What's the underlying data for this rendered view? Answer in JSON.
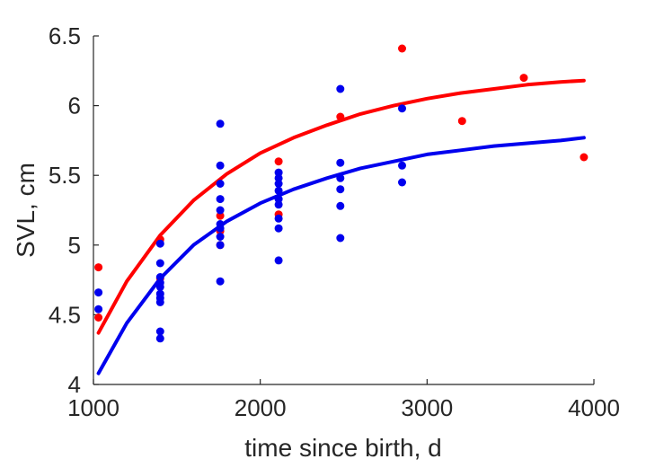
{
  "chart_data": {
    "type": "scatter",
    "title": "",
    "xlabel": "time since birth, d",
    "ylabel": "SVL, cm",
    "xlim": [
      1000,
      4000
    ],
    "ylim": [
      4,
      6.5
    ],
    "xticks": [
      {
        "value": 1000,
        "label": "1000"
      },
      {
        "value": 2000,
        "label": "2000"
      },
      {
        "value": 3000,
        "label": "3000"
      },
      {
        "value": 4000,
        "label": "4000"
      }
    ],
    "yticks": [
      {
        "value": 4,
        "label": "4"
      },
      {
        "value": 4.5,
        "label": "4.5"
      },
      {
        "value": 5,
        "label": "5"
      },
      {
        "value": 5.5,
        "label": "5.5"
      },
      {
        "value": 6,
        "label": "6"
      },
      {
        "value": 6.5,
        "label": "6.5"
      }
    ],
    "grid": false,
    "legend": "none",
    "series": [
      {
        "color": "#ff0000",
        "points": [
          [
            1030,
            4.84
          ],
          [
            1030,
            4.48
          ],
          [
            1400,
            5.04
          ],
          [
            1400,
            4.76
          ],
          [
            1760,
            5.21
          ],
          [
            1760,
            5.0
          ],
          [
            1760,
            5.1
          ],
          [
            2110,
            5.6
          ],
          [
            2110,
            5.22
          ],
          [
            2480,
            5.92
          ],
          [
            2850,
            6.41
          ],
          [
            3210,
            5.89
          ],
          [
            3580,
            6.2
          ],
          [
            3940,
            5.63
          ]
        ],
        "fit": [
          [
            1030,
            4.37
          ],
          [
            1200,
            4.74
          ],
          [
            1400,
            5.07
          ],
          [
            1600,
            5.32
          ],
          [
            1800,
            5.51
          ],
          [
            2000,
            5.66
          ],
          [
            2200,
            5.77
          ],
          [
            2400,
            5.86
          ],
          [
            2600,
            5.94
          ],
          [
            2800,
            6.0
          ],
          [
            3000,
            6.05
          ],
          [
            3200,
            6.09
          ],
          [
            3400,
            6.12
          ],
          [
            3600,
            6.15
          ],
          [
            3800,
            6.17
          ],
          [
            3940,
            6.18
          ]
        ]
      },
      {
        "color": "#0000ee",
        "points": [
          [
            1030,
            4.66
          ],
          [
            1030,
            4.54
          ],
          [
            1400,
            5.01
          ],
          [
            1400,
            4.87
          ],
          [
            1400,
            4.77
          ],
          [
            1400,
            4.73
          ],
          [
            1400,
            4.7
          ],
          [
            1400,
            4.65
          ],
          [
            1400,
            4.62
          ],
          [
            1400,
            4.59
          ],
          [
            1400,
            4.38
          ],
          [
            1400,
            4.33
          ],
          [
            1760,
            5.87
          ],
          [
            1760,
            5.57
          ],
          [
            1760,
            5.44
          ],
          [
            1760,
            5.33
          ],
          [
            1760,
            5.25
          ],
          [
            1760,
            5.15
          ],
          [
            1760,
            5.12
          ],
          [
            1760,
            5.06
          ],
          [
            1760,
            5.0
          ],
          [
            1760,
            4.74
          ],
          [
            2110,
            5.52
          ],
          [
            2110,
            5.48
          ],
          [
            2110,
            5.44
          ],
          [
            2110,
            5.39
          ],
          [
            2110,
            5.33
          ],
          [
            2110,
            5.29
          ],
          [
            2110,
            5.19
          ],
          [
            2110,
            5.12
          ],
          [
            2110,
            4.89
          ],
          [
            2480,
            6.12
          ],
          [
            2480,
            5.59
          ],
          [
            2480,
            5.48
          ],
          [
            2480,
            5.4
          ],
          [
            2480,
            5.28
          ],
          [
            2480,
            5.05
          ],
          [
            2850,
            5.98
          ],
          [
            2850,
            5.57
          ],
          [
            2850,
            5.45
          ]
        ],
        "fit": [
          [
            1030,
            4.08
          ],
          [
            1200,
            4.44
          ],
          [
            1400,
            4.76
          ],
          [
            1600,
            5.0
          ],
          [
            1800,
            5.17
          ],
          [
            2000,
            5.3
          ],
          [
            2200,
            5.4
          ],
          [
            2400,
            5.48
          ],
          [
            2600,
            5.55
          ],
          [
            2800,
            5.6
          ],
          [
            3000,
            5.65
          ],
          [
            3200,
            5.68
          ],
          [
            3400,
            5.71
          ],
          [
            3600,
            5.73
          ],
          [
            3800,
            5.75
          ],
          [
            3940,
            5.77
          ]
        ]
      }
    ]
  }
}
